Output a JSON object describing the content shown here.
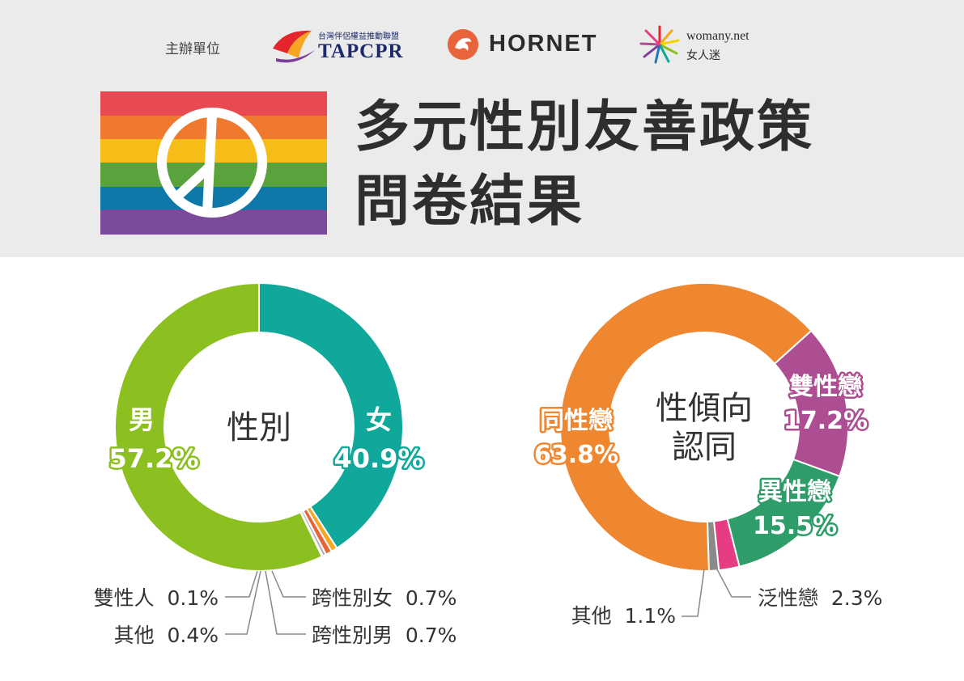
{
  "header": {
    "organizers_label": "主辦單位",
    "logos": {
      "tapcpr_line1": "台灣伴侶權益推動聯盟",
      "tapcpr_line2": "TAPCPR",
      "hornet": "HORNET",
      "womany_line1": "womany.net",
      "womany_line2": "女人迷"
    },
    "title_line1": "多元性別友善政策",
    "title_line2": "問卷結果"
  },
  "colors": {
    "header_bg": "#ebebeb",
    "male": "#8cc021",
    "female": "#0fa89a",
    "orange": "#ef8630",
    "purple": "#ad4e92",
    "green": "#2e9d69",
    "pink": "#e53c83",
    "gray": "#8a8a8a"
  },
  "chart_data": [
    {
      "type": "pie",
      "title": "性別",
      "series": [
        {
          "label": "女",
          "value": 40.9,
          "display": "40.9%",
          "color": "#0fa89a"
        },
        {
          "label": "跨性別女",
          "value": 0.7,
          "display": "0.7%",
          "color": "#f6a623"
        },
        {
          "label": "跨性別男",
          "value": 0.7,
          "display": "0.7%",
          "color": "#e8643a"
        },
        {
          "label": "其他",
          "value": 0.4,
          "display": "0.4%",
          "color": "#b5b5b5"
        },
        {
          "label": "雙性人",
          "value": 0.1,
          "display": "0.1%",
          "color": "#d9d9d9"
        },
        {
          "label": "男",
          "value": 57.2,
          "display": "57.2%",
          "color": "#8cc021"
        }
      ]
    },
    {
      "type": "pie",
      "title": "性傾向 認同",
      "title_lines": [
        "性傾向",
        "認同"
      ],
      "series": [
        {
          "label": "雙性戀",
          "value": 17.2,
          "display": "17.2%",
          "color": "#ad4e92"
        },
        {
          "label": "異性戀",
          "value": 15.5,
          "display": "15.5%",
          "color": "#2e9d69"
        },
        {
          "label": "泛性戀",
          "value": 2.3,
          "display": "2.3%",
          "color": "#e53c83"
        },
        {
          "label": "其他",
          "value": 1.1,
          "display": "1.1%",
          "color": "#8a8a8a"
        },
        {
          "label": "同性戀",
          "value": 63.8,
          "display": "63.8%",
          "color": "#ef8630"
        }
      ]
    }
  ]
}
